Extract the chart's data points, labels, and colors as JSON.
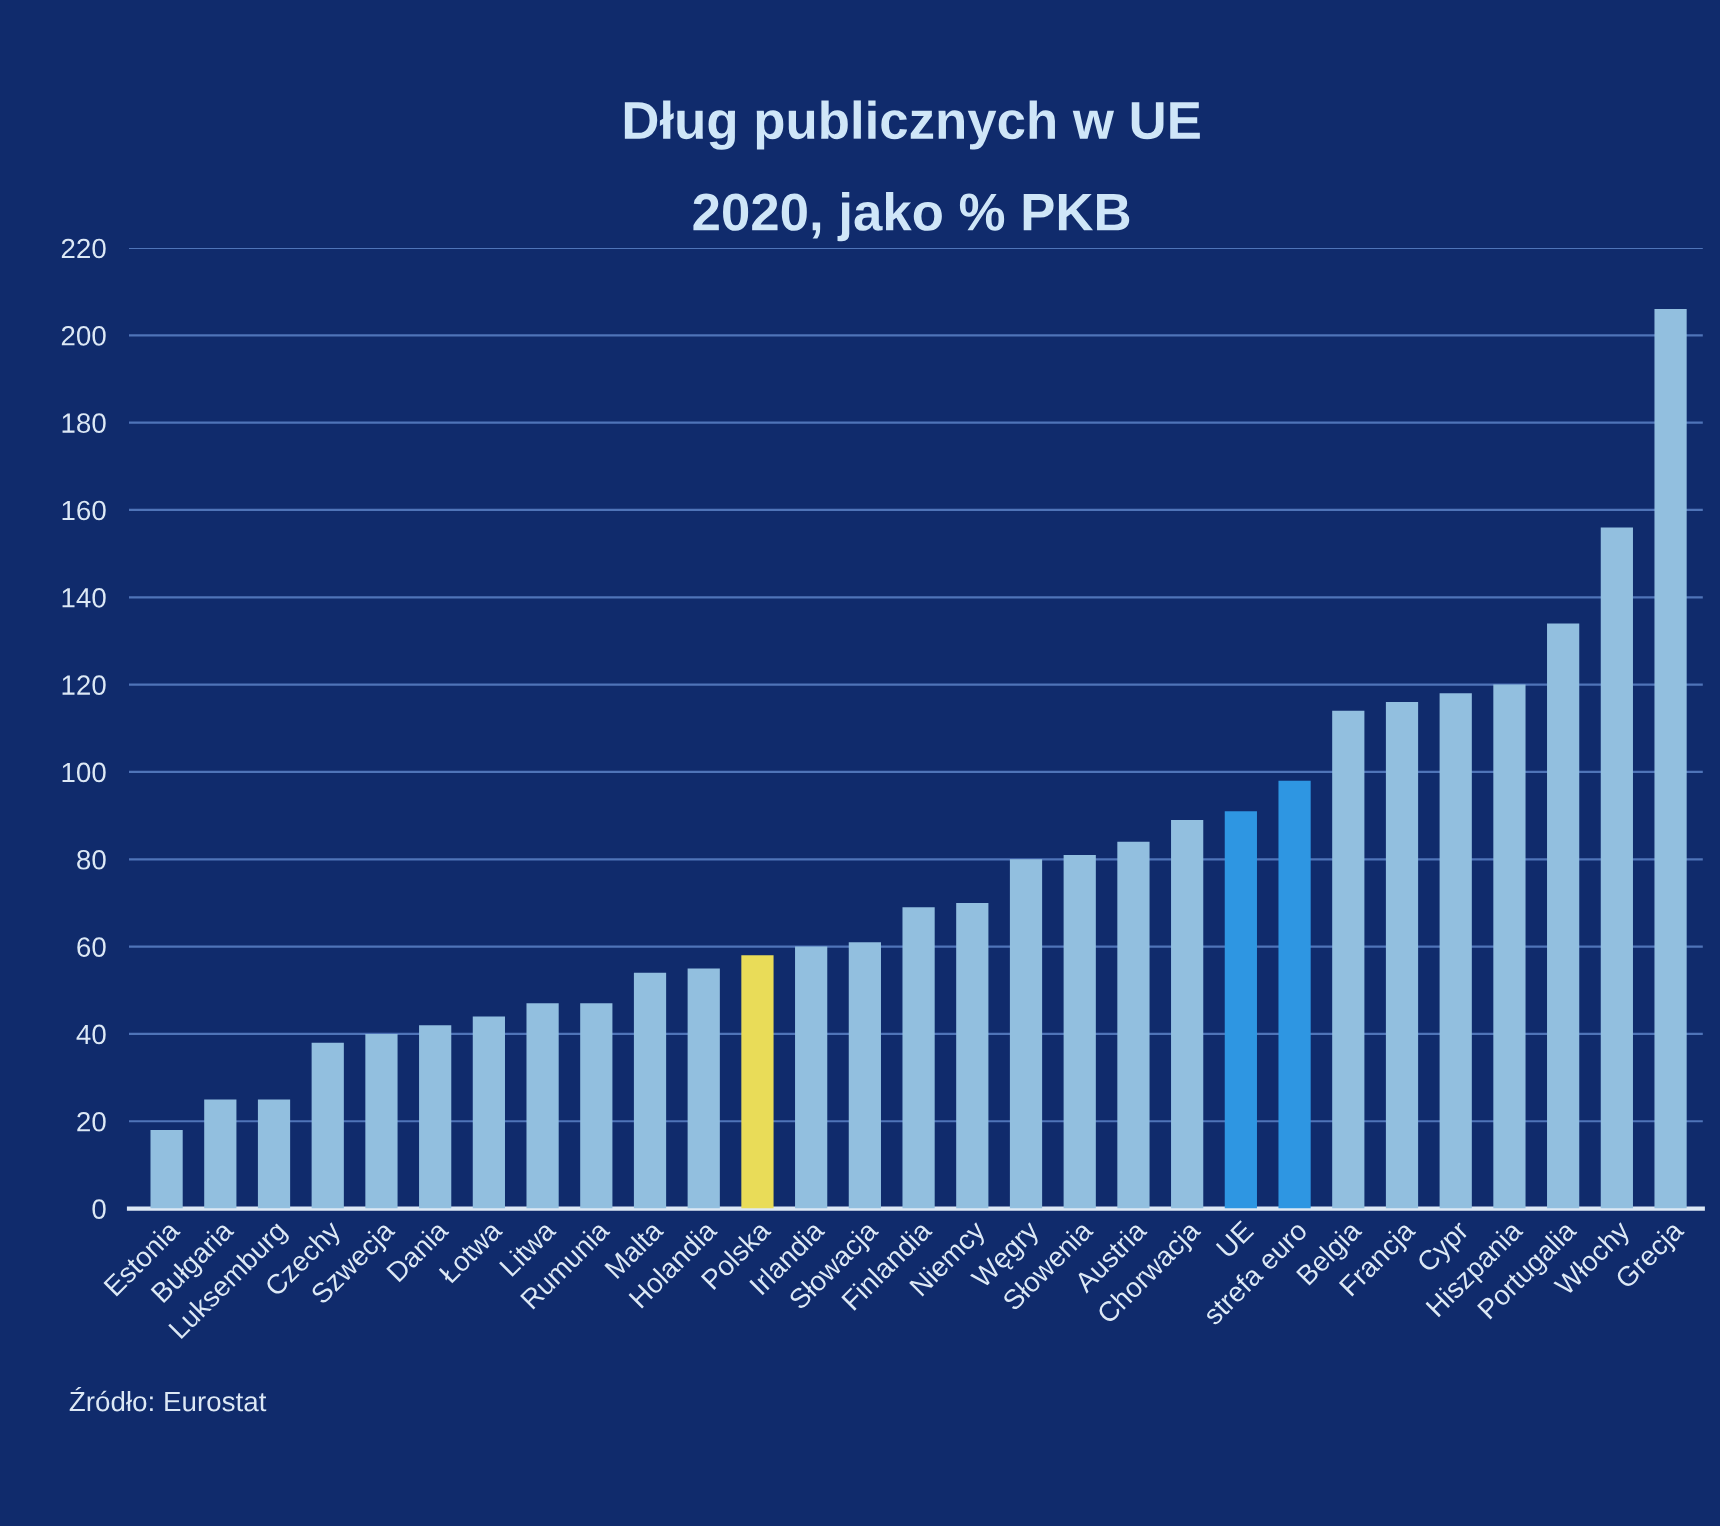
{
  "chart_data": {
    "type": "bar",
    "title": "Dług publicznych w UE",
    "subtitle": "2020, jako % PKB",
    "categories": [
      "Estonia",
      "Bułgaria",
      "Luksemburg",
      "Czechy",
      "Szwecja",
      "Dania",
      "Łotwa",
      "Litwa",
      "Rumunia",
      "Malta",
      "Holandia",
      "Polska",
      "Irlandia",
      "Słowacja",
      "Finlandia",
      "Niemcy",
      "Węgry",
      "Słowenia",
      "Austria",
      "Chorwacja",
      "UE",
      "strefa euro",
      "Belgia",
      "Francja",
      "Cypr",
      "Hiszpania",
      "Portugalia",
      "Włochy",
      "Grecja"
    ],
    "values": [
      18,
      25,
      25,
      38,
      40,
      42,
      44,
      47,
      47,
      54,
      55,
      58,
      60,
      61,
      69,
      70,
      80,
      81,
      84,
      89,
      91,
      98,
      114,
      116,
      118,
      120,
      134,
      156,
      206
    ],
    "colors": [
      "#92bfdf",
      "#92bfdf",
      "#92bfdf",
      "#92bfdf",
      "#92bfdf",
      "#92bfdf",
      "#92bfdf",
      "#92bfdf",
      "#92bfdf",
      "#92bfdf",
      "#92bfdf",
      "#e9dc58",
      "#92bfdf",
      "#92bfdf",
      "#92bfdf",
      "#92bfdf",
      "#92bfdf",
      "#92bfdf",
      "#92bfdf",
      "#92bfdf",
      "#2e96e2",
      "#2e96e2",
      "#92bfdf",
      "#92bfdf",
      "#92bfdf",
      "#92bfdf",
      "#92bfdf",
      "#92bfdf",
      "#92bfdf"
    ],
    "ylim": [
      0,
      220
    ],
    "yticks": [
      0,
      20,
      40,
      60,
      80,
      100,
      120,
      140,
      160,
      180,
      200,
      220
    ],
    "grid": "y",
    "annotations": [
      "Źródło: Eurostat"
    ]
  }
}
